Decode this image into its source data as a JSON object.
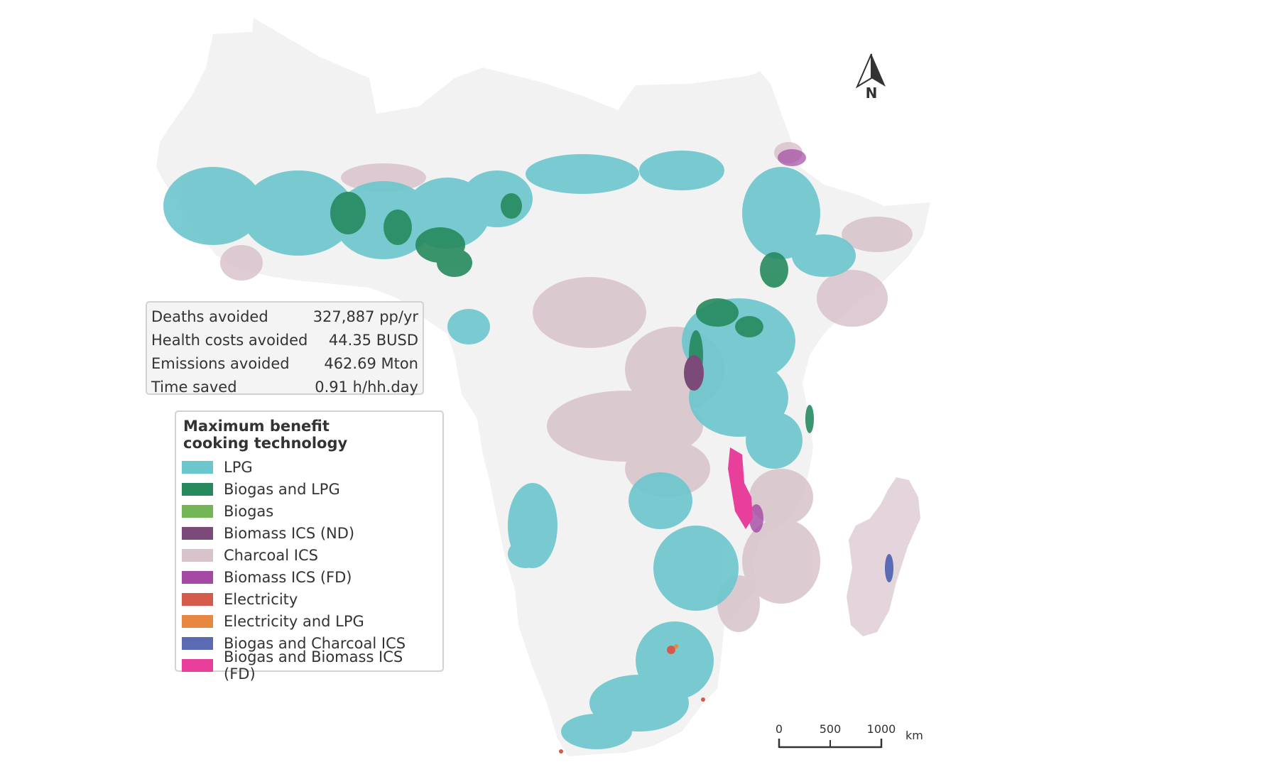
{
  "summary": {
    "rows": [
      {
        "label": "Deaths avoided",
        "value": "327,887 pp/yr"
      },
      {
        "label": "Health costs avoided",
        "value": "44.35 BUSD"
      },
      {
        "label": "Emissions avoided",
        "value": "462.69 Mton"
      },
      {
        "label": "Time saved",
        "value": "0.91 h/hh.day"
      }
    ]
  },
  "legend": {
    "title": "Maximum benefit\ncooking technology",
    "items": [
      {
        "label": "LPG",
        "color": "#6cc6cd"
      },
      {
        "label": "Biogas and LPG",
        "color": "#268a5e"
      },
      {
        "label": "Biogas",
        "color": "#72b456"
      },
      {
        "label": "Biomass ICS (ND)",
        "color": "#7b4a78"
      },
      {
        "label": "Charcoal ICS",
        "color": "#d8c2cb"
      },
      {
        "label": "Biomass ICS (FD)",
        "color": "#a348a3"
      },
      {
        "label": "Electricity",
        "color": "#d45b4b"
      },
      {
        "label": "Electricity and LPG",
        "color": "#e8873f"
      },
      {
        "label": "Biogas and Charcoal ICS",
        "color": "#5a6ab3"
      },
      {
        "label": "Biogas and Biomass ICS (FD)",
        "color": "#e8409a"
      }
    ]
  },
  "north_arrow": {
    "label": "N"
  },
  "scale_bar": {
    "ticks": [
      "0",
      "500",
      "1000"
    ],
    "unit": "km"
  },
  "colors": {
    "land": "#f2f2f2",
    "lpg": "#6cc6cd",
    "biogas_lpg": "#268a5e",
    "charcoal_ics": "#d8c2cb",
    "biomass_nd": "#7b4a78",
    "biomass_fd": "#a348a3",
    "biogas_biomass_fd": "#e8409a",
    "biogas_charcoal": "#5a6ab3",
    "electricity": "#d45b4b",
    "electricity_lpg": "#e8873f"
  }
}
